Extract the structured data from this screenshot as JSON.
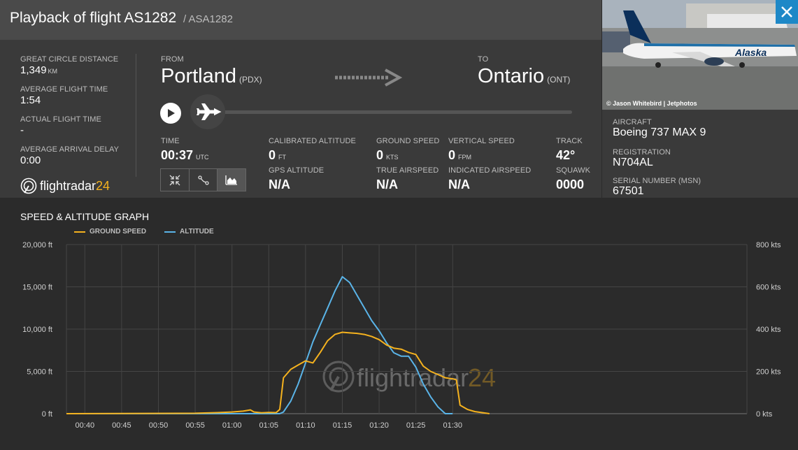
{
  "header": {
    "title": "Playback of flight AS1282",
    "callsign": "/ ASA1282"
  },
  "stats": {
    "great_circle_label": "GREAT CIRCLE DISTANCE",
    "great_circle_value": "1,349",
    "great_circle_unit": "KM",
    "avg_time_label": "AVERAGE FLIGHT TIME",
    "avg_time_value": "1:54",
    "actual_time_label": "ACTUAL FLIGHT TIME",
    "actual_time_value": "-",
    "avg_delay_label": "AVERAGE ARRIVAL DELAY",
    "avg_delay_value": "0:00"
  },
  "brand": {
    "name": "flightradar",
    "suffix": "24"
  },
  "route": {
    "from_label": "FROM",
    "from_city": "Portland",
    "from_code": "(PDX)",
    "to_label": "TO",
    "to_city": "Ontario",
    "to_code": "(ONT)"
  },
  "telemetry": {
    "time_label": "TIME",
    "time_value": "00:37",
    "time_unit": "UTC",
    "cal_alt_label": "CALIBRATED ALTITUDE",
    "cal_alt_value": "0",
    "cal_alt_unit": "FT",
    "gps_alt_label": "GPS ALTITUDE",
    "gps_alt_value": "N/A",
    "gs_label": "GROUND SPEED",
    "gs_value": "0",
    "gs_unit": "KTS",
    "tas_label": "TRUE AIRSPEED",
    "tas_value": "N/A",
    "vs_label": "VERTICAL SPEED",
    "vs_value": "0",
    "vs_unit": "FPM",
    "ias_label": "INDICATED AIRSPEED",
    "ias_value": "N/A",
    "track_label": "TRACK",
    "track_value": "42°",
    "squawk_label": "SQUAWK",
    "squawk_value": "0000"
  },
  "aircraft": {
    "photo_credit": "© Jason Whitebird | Jetphotos",
    "aircraft_label": "AIRCRAFT",
    "aircraft_value": "Boeing 737 MAX 9",
    "registration_label": "REGISTRATION",
    "registration_value": "N704AL",
    "msn_label": "SERIAL NUMBER (MSN)",
    "msn_value": "67501",
    "livery_text": "Alaska"
  },
  "graph": {
    "title": "SPEED & ALTITUDE GRAPH",
    "legend_speed": "GROUND SPEED",
    "legend_alt": "ALTITUDE",
    "colors": {
      "speed": "#f5b21e",
      "altitude": "#5ab4e8",
      "grid": "#454545",
      "text": "#d0d0d0"
    }
  },
  "chart_data": {
    "type": "line",
    "title": "SPEED & ALTITUDE GRAPH",
    "x_unit": "minutes after 00:00 UTC",
    "xlim": [
      37.5,
      130
    ],
    "x_ticks": [
      "00:40",
      "00:45",
      "00:50",
      "00:55",
      "01:00",
      "01:05",
      "01:10",
      "01:15",
      "01:20",
      "01:25",
      "01:30"
    ],
    "x_tick_values": [
      40,
      45,
      50,
      55,
      60,
      65,
      70,
      75,
      80,
      85,
      90
    ],
    "y_left": {
      "ticks": [
        "0 ft",
        "5,000 ft",
        "10,000 ft",
        "15,000 ft",
        "20,000 ft"
      ],
      "lim": [
        0,
        20000
      ]
    },
    "y_right": {
      "ticks": [
        "0 kts",
        "200 kts",
        "400 kts",
        "600 kts",
        "800 kts"
      ],
      "lim": [
        0,
        800
      ]
    },
    "grid": true,
    "legend_placement": "top-left",
    "series": [
      {
        "name": "ALTITUDE",
        "axis": "left",
        "points": [
          [
            37.5,
            0
          ],
          [
            66.5,
            0
          ],
          [
            67,
            200
          ],
          [
            68,
            1500
          ],
          [
            69,
            3500
          ],
          [
            70,
            6000
          ],
          [
            71,
            8500
          ],
          [
            72,
            10500
          ],
          [
            73,
            12500
          ],
          [
            74,
            14500
          ],
          [
            75,
            16200
          ],
          [
            76,
            15500
          ],
          [
            77,
            14000
          ],
          [
            78,
            12500
          ],
          [
            79,
            11000
          ],
          [
            80,
            9800
          ],
          [
            81,
            8400
          ],
          [
            82,
            7200
          ],
          [
            83,
            6800
          ],
          [
            84,
            6800
          ],
          [
            85,
            5500
          ],
          [
            86,
            3500
          ],
          [
            87,
            2000
          ],
          [
            88,
            800
          ],
          [
            89,
            0
          ],
          [
            90,
            0
          ]
        ]
      },
      {
        "name": "GROUND SPEED",
        "axis": "right",
        "points": [
          [
            37.5,
            0
          ],
          [
            55,
            2
          ],
          [
            58,
            5
          ],
          [
            60,
            8
          ],
          [
            61.5,
            12
          ],
          [
            62.5,
            18
          ],
          [
            63,
            8
          ],
          [
            64,
            4
          ],
          [
            65,
            6
          ],
          [
            66,
            5
          ],
          [
            66.5,
            20
          ],
          [
            67,
            170
          ],
          [
            68,
            210
          ],
          [
            69,
            230
          ],
          [
            70,
            250
          ],
          [
            71,
            240
          ],
          [
            72,
            290
          ],
          [
            73,
            345
          ],
          [
            74,
            375
          ],
          [
            75,
            385
          ],
          [
            76,
            382
          ],
          [
            77,
            380
          ],
          [
            78,
            375
          ],
          [
            79,
            365
          ],
          [
            80,
            350
          ],
          [
            81,
            325
          ],
          [
            82,
            310
          ],
          [
            83,
            305
          ],
          [
            84,
            290
          ],
          [
            85,
            280
          ],
          [
            86,
            225
          ],
          [
            87,
            200
          ],
          [
            88,
            185
          ],
          [
            89,
            170
          ],
          [
            90,
            165
          ],
          [
            90.5,
            160
          ],
          [
            91,
            40
          ],
          [
            92,
            20
          ],
          [
            93,
            10
          ],
          [
            94,
            5
          ],
          [
            95,
            0
          ]
        ]
      }
    ]
  }
}
